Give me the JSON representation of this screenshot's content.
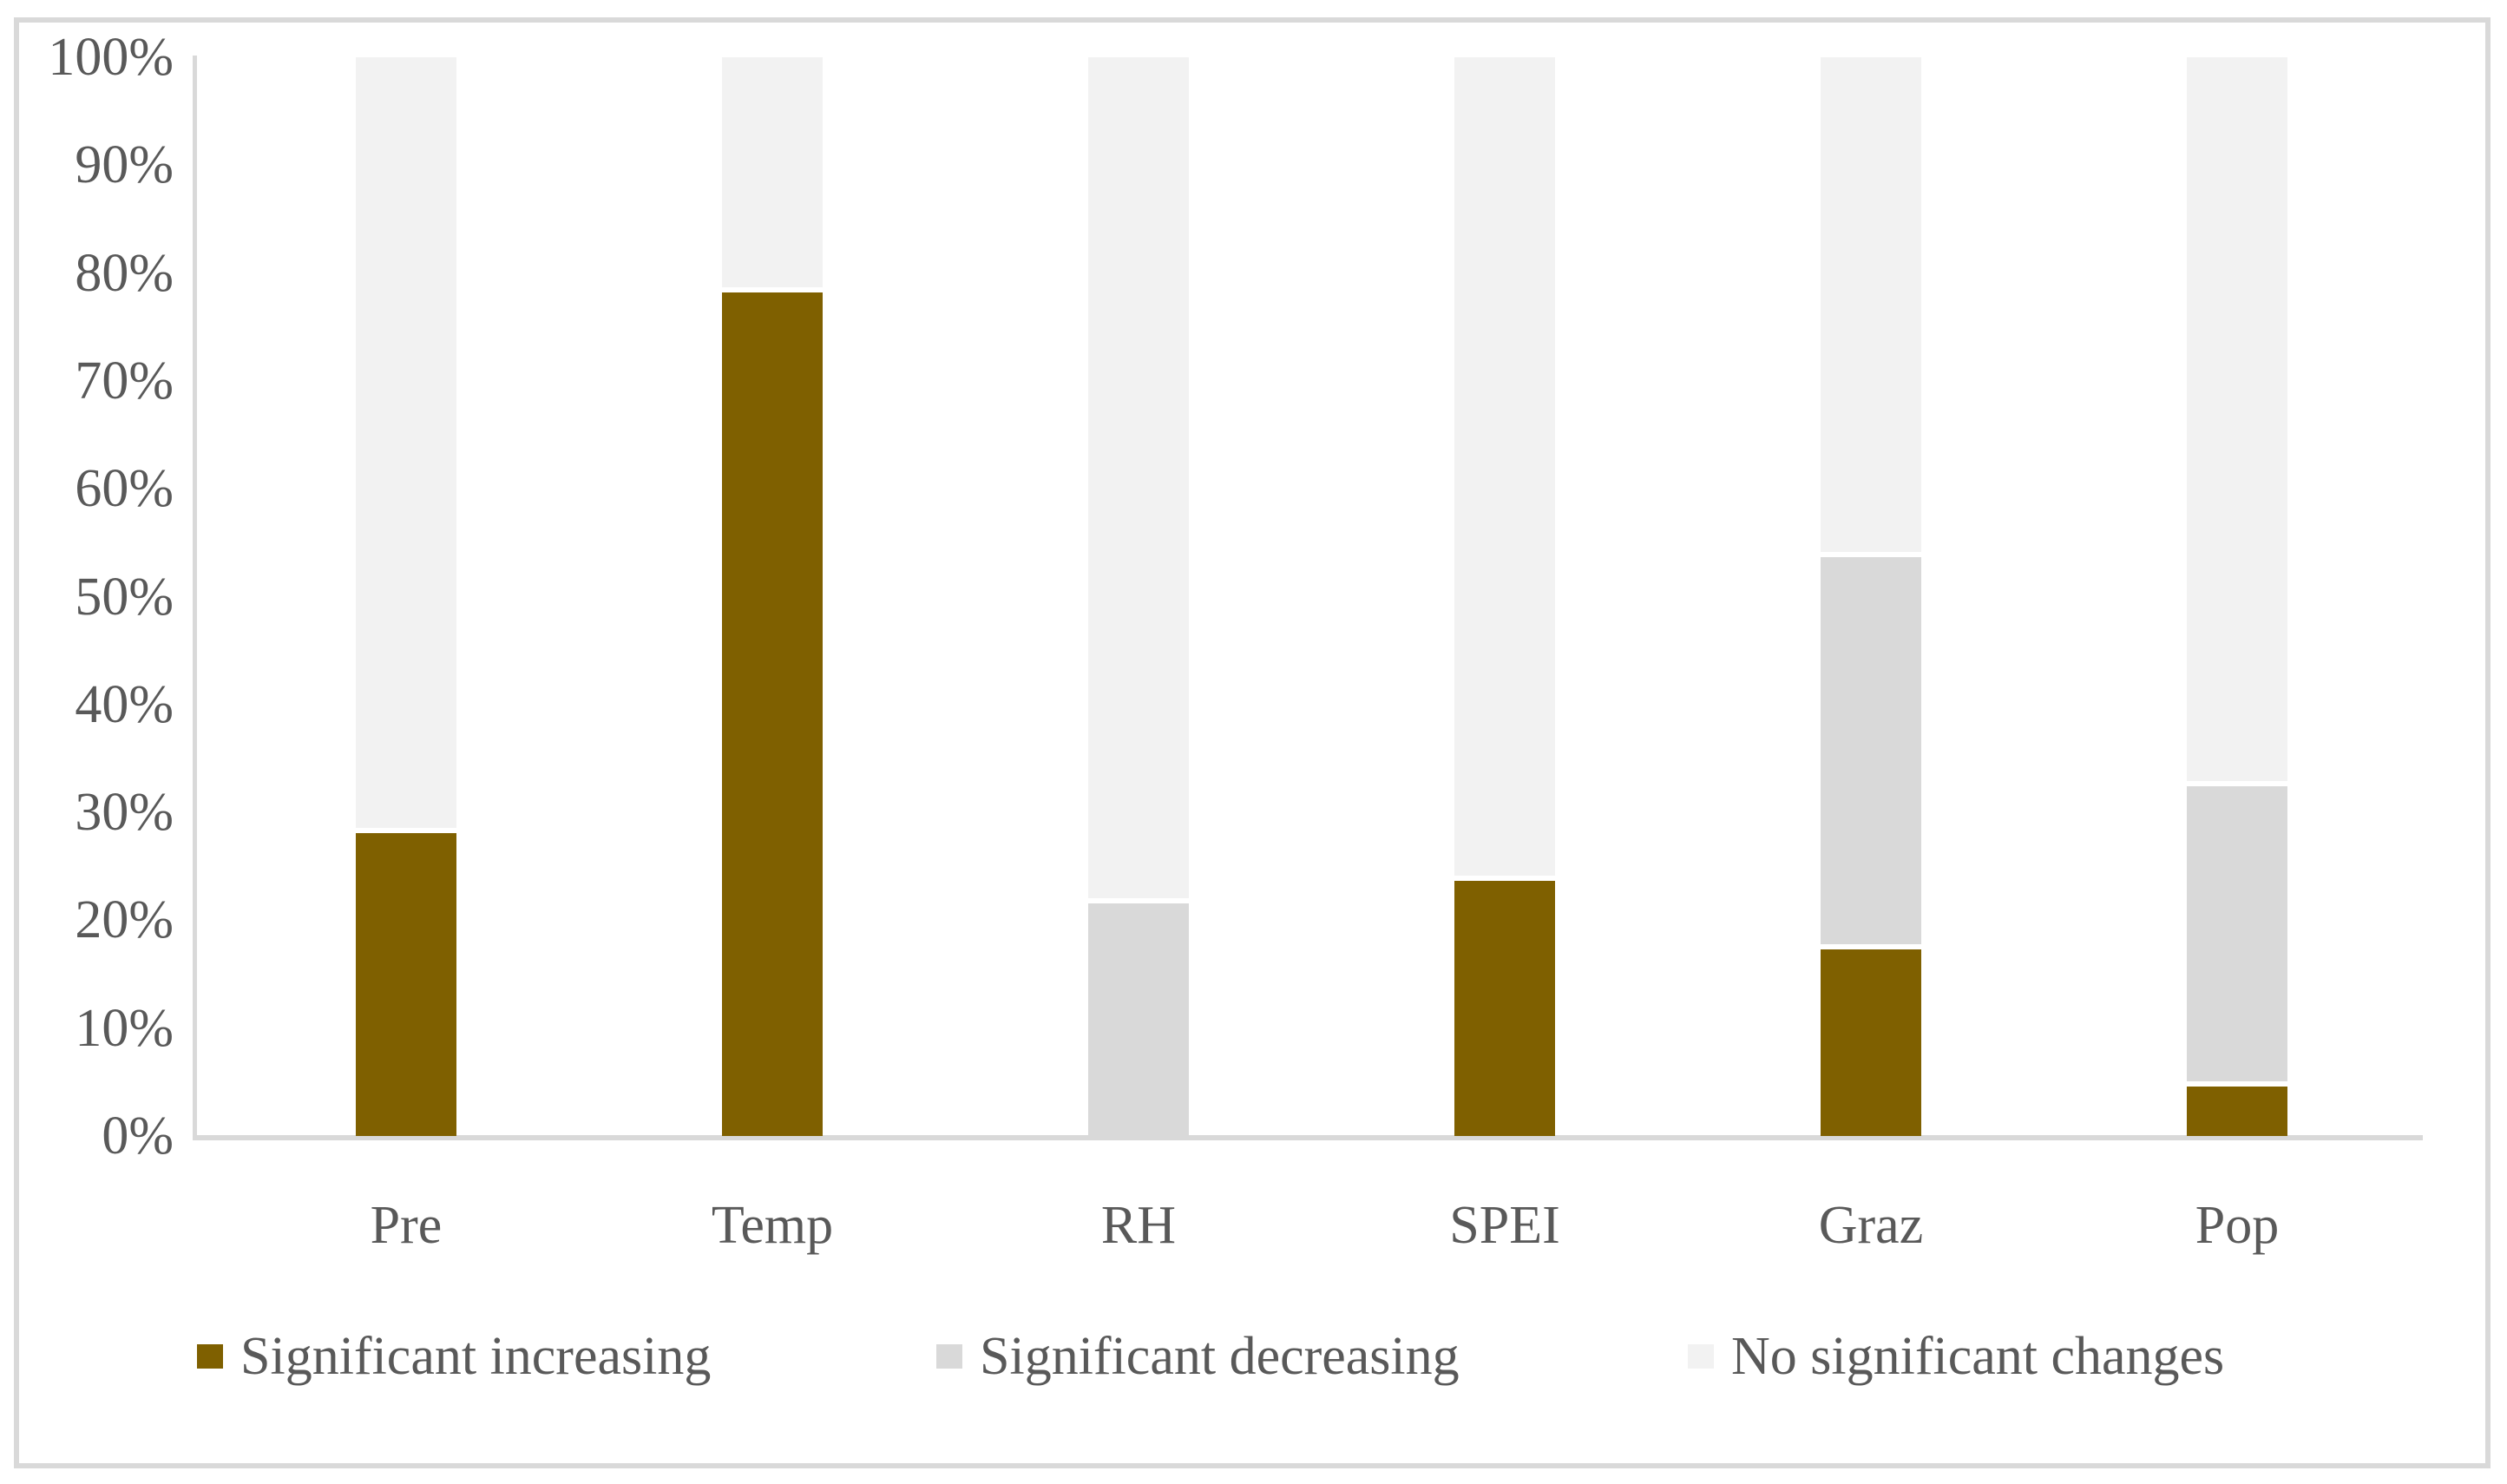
{
  "chart_data": {
    "type": "bar",
    "stacked": true,
    "title": "",
    "xlabel": "",
    "ylabel": "",
    "categories": [
      "Pre",
      "Temp",
      "RH",
      "SPEI",
      "Graz",
      "Pop"
    ],
    "series": [
      {
        "name": "Significant increasing",
        "color": "#7F6000",
        "values": [
          28.3,
          78.4,
          0,
          23.9,
          17.5,
          4.8
        ]
      },
      {
        "name": "Significant decreasing",
        "color": "#D9D9D9",
        "values": [
          0,
          0,
          21.8,
          0,
          36.4,
          27.9
        ]
      },
      {
        "name": "No significant changes",
        "color": "#F2F2F2",
        "values": [
          71.7,
          21.6,
          78.2,
          76.1,
          46.1,
          67.3
        ]
      }
    ],
    "ylim": [
      0,
      100
    ],
    "yticks": [
      "100%",
      "90%",
      "80%",
      "70%",
      "60%",
      "50%",
      "40%",
      "30%",
      "20%",
      "10%",
      "0%"
    ],
    "grid": false,
    "legend_position": "bottom"
  },
  "colors": {
    "axis_line": "#D9D9D9",
    "frame_border": "#D9D9D9",
    "tick_text": "#595959",
    "background": "#FFFFFF"
  }
}
